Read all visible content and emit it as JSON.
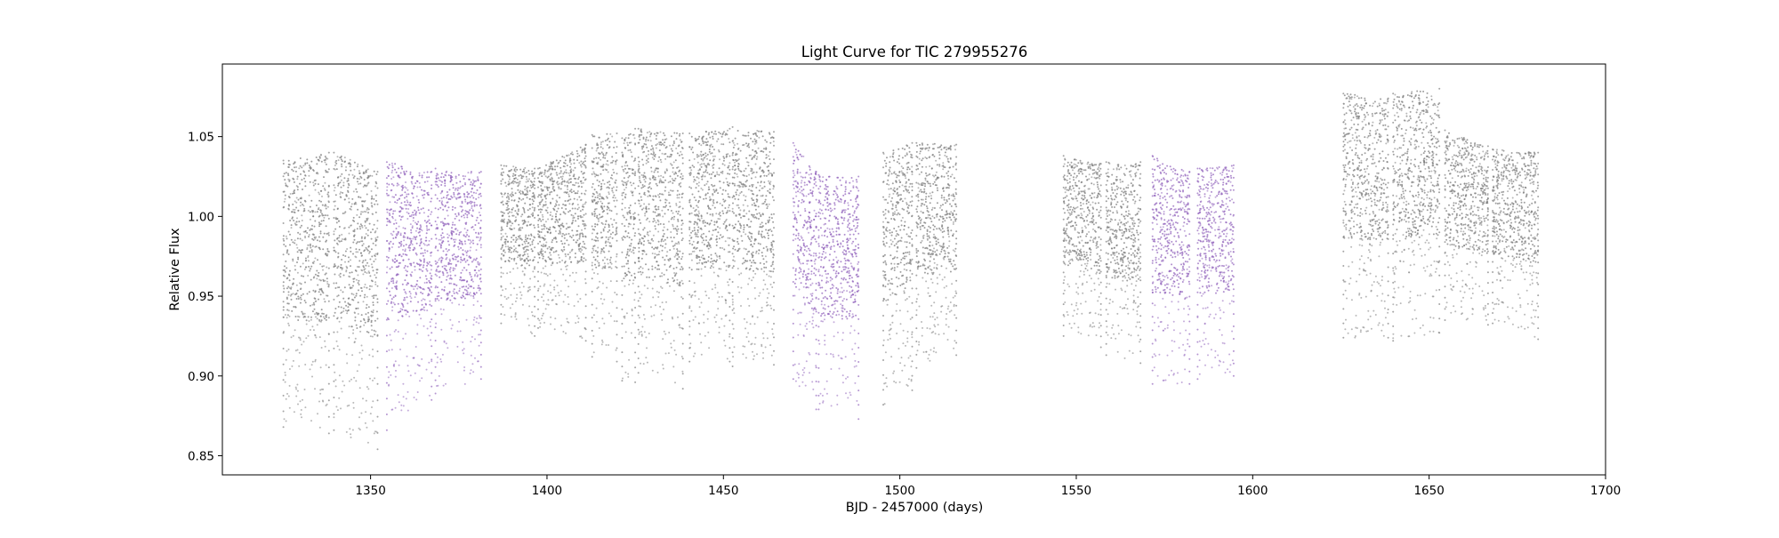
{
  "chart_data": {
    "type": "scatter",
    "title": "Light Curve for TIC 279955276",
    "xlabel": "BJD - 2457000 (days)",
    "ylabel": "Relative Flux",
    "xlim": [
      1308,
      1700
    ],
    "ylim": [
      0.838,
      1.0955
    ],
    "x_ticks": [
      1350,
      1400,
      1450,
      1500,
      1550,
      1600,
      1650,
      1700
    ],
    "y_ticks": [
      0.85,
      0.9,
      0.95,
      1.0,
      1.05
    ],
    "x_tick_labels": [
      "1350",
      "1400",
      "1450",
      "1500",
      "1550",
      "1600",
      "1650",
      "1700"
    ],
    "y_tick_labels": [
      "0.85",
      "0.90",
      "0.95",
      "1.00",
      "1.05"
    ],
    "grid": false,
    "legend": false,
    "colors": {
      "normal": "#7f7f7f",
      "highlight": "#9467bd"
    },
    "series": [
      {
        "color": "#7f7f7f",
        "segments": [
          {
            "x": [
              1325.3,
              1338.2
            ],
            "upper": [
              1.035,
              1.04
            ],
            "lower": [
              0.868,
              0.864
            ]
          },
          {
            "x": [
              1339.6,
              1352.0
            ],
            "upper": [
              1.04,
              1.028
            ],
            "lower": [
              0.866,
              0.854
            ]
          },
          {
            "x": [
              1387.0,
              1396.5
            ],
            "upper": [
              1.032,
              1.03
            ],
            "lower": [
              0.933,
              0.925
            ]
          },
          {
            "x": [
              1397.5,
              1411.0
            ],
            "upper": [
              1.03,
              1.045
            ],
            "lower": [
              0.93,
              0.922
            ]
          },
          {
            "x": [
              1412.8,
              1419.8
            ],
            "upper": [
              1.051,
              1.052
            ],
            "lower": [
              0.912,
              0.909
            ]
          },
          {
            "x": [
              1421.3,
              1425.0
            ],
            "upper": [
              1.049,
              1.055
            ],
            "lower": [
              0.897,
              0.896
            ]
          },
          {
            "x": [
              1425.9,
              1438.5
            ],
            "upper": [
              1.055,
              1.052
            ],
            "lower": [
              0.902,
              0.892
            ]
          },
          {
            "x": [
              1440.4,
              1451.8
            ],
            "upper": [
              1.052,
              1.055
            ],
            "lower": [
              0.909,
              0.909
            ]
          },
          {
            "x": [
              1452.6,
              1464.3
            ],
            "upper": [
              1.056,
              1.053
            ],
            "lower": [
              0.906,
              0.907
            ]
          },
          {
            "x": [
              1495.3,
              1503.5
            ],
            "upper": [
              1.04,
              1.046
            ],
            "lower": [
              0.882,
              0.891
            ]
          },
          {
            "x": [
              1504.7,
              1516.0
            ],
            "upper": [
              1.046,
              1.045
            ],
            "lower": [
              0.905,
              0.913
            ]
          },
          {
            "x": [
              1546.4,
              1557.0
            ],
            "upper": [
              1.038,
              1.033
            ],
            "lower": [
              0.925,
              0.918
            ]
          },
          {
            "x": [
              1558.5,
              1568.2
            ],
            "upper": [
              1.034,
              1.034
            ],
            "lower": [
              0.913,
              0.908
            ]
          },
          {
            "x": [
              1625.7,
              1638.4
            ],
            "upper": [
              1.077,
              1.074
            ],
            "lower": [
              0.924,
              0.924
            ]
          },
          {
            "x": [
              1639.8,
              1652.9
            ],
            "upper": [
              1.077,
              1.08
            ],
            "lower": [
              0.922,
              0.927
            ]
          },
          {
            "x": [
              1654.5,
              1666.7
            ],
            "upper": [
              1.054,
              1.044
            ],
            "lower": [
              0.935,
              0.932
            ]
          },
          {
            "x": [
              1668.0,
              1680.9
            ],
            "upper": [
              1.042,
              1.04
            ],
            "lower": [
              0.933,
              0.923
            ]
          }
        ]
      },
      {
        "color": "#9467bd",
        "segments": [
          {
            "x": [
              1354.6,
              1367.3
            ],
            "upper": [
              1.034,
              1.028
            ],
            "lower": [
              0.866,
              0.885
            ]
          },
          {
            "x": [
              1368.4,
              1381.3
            ],
            "upper": [
              1.03,
              1.028
            ],
            "lower": [
              0.889,
              0.898
            ]
          },
          {
            "x": [
              1469.8,
              1476.3
            ],
            "upper": [
              1.046,
              1.028
            ],
            "lower": [
              0.898,
              0.879
            ]
          },
          {
            "x": [
              1477.0,
              1488.3
            ],
            "upper": [
              1.026,
              1.025
            ],
            "lower": [
              0.879,
              0.873
            ]
          },
          {
            "x": [
              1571.6,
              1582.1
            ],
            "upper": [
              1.038,
              1.028
            ],
            "lower": [
              0.895,
              0.895
            ]
          },
          {
            "x": [
              1584.4,
              1594.6
            ],
            "upper": [
              1.03,
              1.032
            ],
            "lower": [
              0.898,
              0.9
            ]
          }
        ]
      }
    ]
  }
}
